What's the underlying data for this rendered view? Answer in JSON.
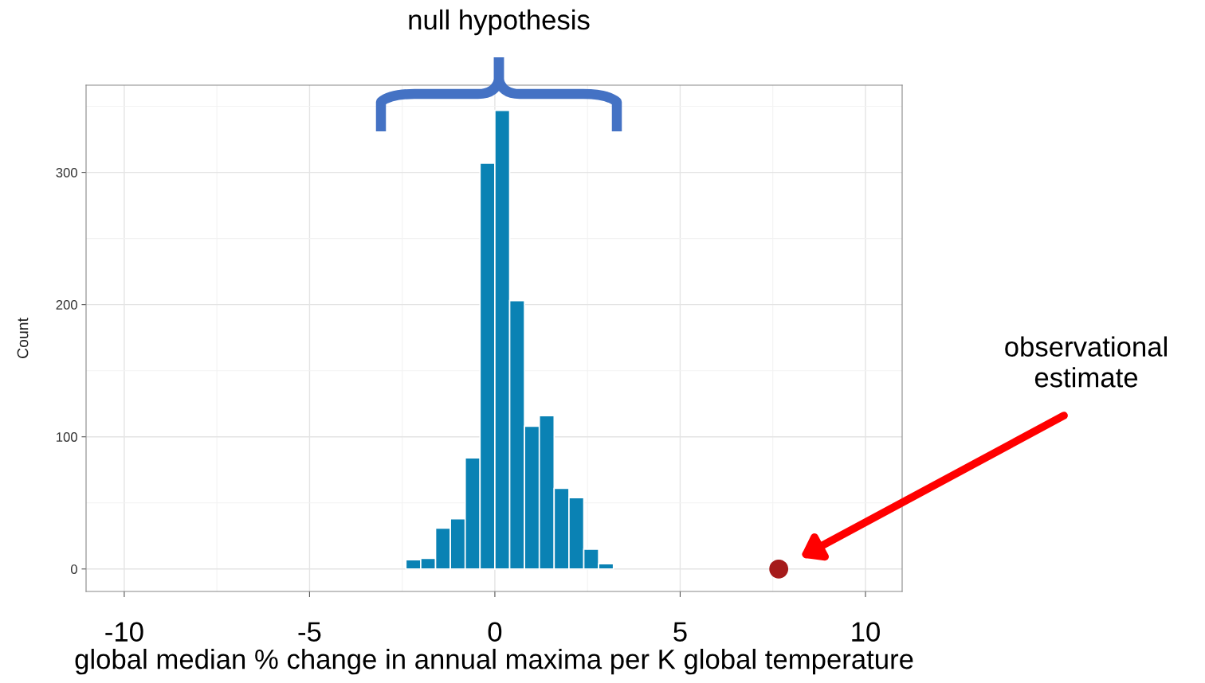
{
  "chart_data": {
    "type": "histogram",
    "xlabel": "global median % change in annual maxima per K global temperature",
    "ylabel": "Count",
    "bins": [
      -2.4,
      -2.0,
      -1.6,
      -1.2,
      -0.8,
      -0.4,
      0.0,
      0.4,
      0.8,
      1.2,
      1.6,
      2.0,
      2.4,
      2.8,
      3.2
    ],
    "values": [
      7,
      8,
      31,
      38,
      84,
      307,
      347,
      203,
      108,
      116,
      61,
      54,
      15,
      4
    ],
    "color": "#0a82b4",
    "series": [
      {
        "type": "scatter",
        "x": [
          7.66
        ],
        "values": [
          0
        ],
        "color": "#a51b1b"
      }
    ],
    "annotations": [
      "null hypothesis",
      "observational estimate"
    ],
    "xlim": [
      -11.03,
      10.99
    ],
    "ylim": [
      -17,
      366
    ],
    "xticks": [
      -10,
      -5,
      0,
      5,
      10
    ],
    "yticks": [
      0,
      100,
      200,
      300
    ],
    "grid": true
  }
}
